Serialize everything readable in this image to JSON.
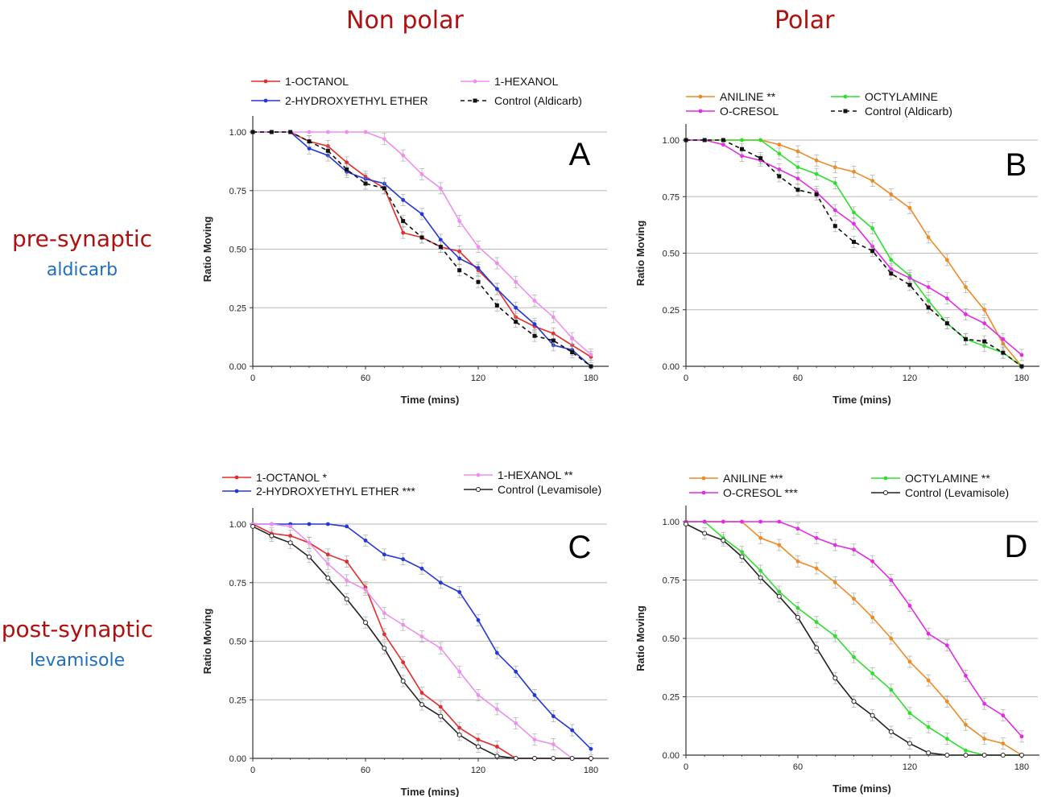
{
  "columns": {
    "left": "Non polar",
    "right": "Polar"
  },
  "rows": [
    {
      "title": "pre-synaptic",
      "subtitle": "aldicarb"
    },
    {
      "title": "post-synaptic",
      "subtitle": "levamisole"
    }
  ],
  "chart_data": [
    {
      "type": "line",
      "panel": "A",
      "xlabel": "Time (mins)",
      "ylabel": "Ratio Moving",
      "xlim": [
        0,
        180
      ],
      "ylim": [
        0,
        1
      ],
      "xticks": [
        "0",
        "60",
        "120",
        "180"
      ],
      "yticks": [
        "0.00",
        "0.25",
        "0.50",
        "0.75",
        "1.00"
      ],
      "grid": true,
      "legend": "top",
      "series": [
        {
          "name": "1-OCTANOL",
          "color": "#e52b2b",
          "dash": false,
          "marker": "dot",
          "x": [
            0,
            10,
            20,
            30,
            40,
            50,
            60,
            70,
            80,
            90,
            100,
            110,
            120,
            130,
            140,
            150,
            160,
            170,
            180
          ],
          "y": [
            1,
            1,
            1,
            0.96,
            0.94,
            0.87,
            0.81,
            0.76,
            0.57,
            0.55,
            0.51,
            0.49,
            0.41,
            0.33,
            0.21,
            0.17,
            0.14,
            0.09,
            0.04
          ]
        },
        {
          "name": "2-HYDROXYETHYL ETHER",
          "color": "#2437d9",
          "dash": false,
          "marker": "dot",
          "x": [
            0,
            10,
            20,
            30,
            40,
            50,
            60,
            70,
            80,
            90,
            100,
            110,
            120,
            130,
            140,
            150,
            160,
            170,
            180
          ],
          "y": [
            1,
            1,
            1,
            0.93,
            0.9,
            0.83,
            0.8,
            0.78,
            0.71,
            0.65,
            0.54,
            0.46,
            0.42,
            0.33,
            0.25,
            0.18,
            0.09,
            0.07,
            0.0
          ]
        },
        {
          "name": "1-HEXANOL",
          "color": "#ee8ff0",
          "dash": false,
          "marker": "dot",
          "x": [
            0,
            10,
            20,
            30,
            40,
            50,
            60,
            70,
            80,
            90,
            100,
            110,
            120,
            130,
            140,
            150,
            160,
            170,
            180
          ],
          "y": [
            1,
            1,
            1,
            1,
            1,
            1,
            1,
            0.97,
            0.9,
            0.82,
            0.76,
            0.62,
            0.51,
            0.44,
            0.36,
            0.28,
            0.21,
            0.12,
            0.05
          ]
        },
        {
          "name": "Control (Aldicarb)",
          "color": "#111111",
          "dash": true,
          "marker": "square",
          "x": [
            0,
            10,
            20,
            30,
            40,
            50,
            60,
            70,
            80,
            90,
            100,
            110,
            120,
            130,
            140,
            150,
            160,
            170,
            180
          ],
          "y": [
            1,
            1,
            1,
            0.96,
            0.92,
            0.84,
            0.78,
            0.76,
            0.62,
            0.55,
            0.51,
            0.41,
            0.36,
            0.26,
            0.19,
            0.13,
            0.11,
            0.06,
            0.0
          ]
        }
      ]
    },
    {
      "type": "line",
      "panel": "B",
      "xlabel": "Time (mins)",
      "ylabel": "Ratio Moving",
      "xlim": [
        0,
        180
      ],
      "ylim": [
        0,
        1
      ],
      "xticks": [
        "0",
        "60",
        "120",
        "180"
      ],
      "yticks": [
        "0.00",
        "0.25",
        "0.50",
        "0.75",
        "1.00"
      ],
      "grid": true,
      "legend": "top",
      "series": [
        {
          "name": "ANILINE **",
          "color": "#f08a24",
          "dash": false,
          "marker": "dot",
          "x": [
            0,
            10,
            20,
            30,
            40,
            50,
            60,
            70,
            80,
            90,
            100,
            110,
            120,
            130,
            140,
            150,
            160,
            170,
            180
          ],
          "y": [
            1,
            1,
            1,
            1,
            1,
            0.98,
            0.95,
            0.91,
            0.88,
            0.86,
            0.82,
            0.76,
            0.7,
            0.57,
            0.47,
            0.35,
            0.25,
            0.1,
            0.0
          ]
        },
        {
          "name": "OCTYLAMINE",
          "color": "#2ee02e",
          "dash": false,
          "marker": "dot",
          "x": [
            0,
            10,
            20,
            30,
            40,
            50,
            60,
            70,
            80,
            90,
            100,
            110,
            120,
            130,
            140,
            150,
            160,
            170,
            180
          ],
          "y": [
            1,
            1,
            1,
            1,
            1,
            0.94,
            0.88,
            0.85,
            0.81,
            0.68,
            0.61,
            0.47,
            0.4,
            0.29,
            0.19,
            0.12,
            0.09,
            0.06,
            0.0
          ]
        },
        {
          "name": "O-CRESOL",
          "color": "#e22ce6",
          "dash": false,
          "marker": "dot",
          "x": [
            0,
            10,
            20,
            30,
            40,
            50,
            60,
            70,
            80,
            90,
            100,
            110,
            120,
            130,
            140,
            150,
            160,
            170,
            180
          ],
          "y": [
            1,
            1,
            0.98,
            0.93,
            0.91,
            0.87,
            0.83,
            0.77,
            0.69,
            0.63,
            0.53,
            0.43,
            0.39,
            0.35,
            0.3,
            0.23,
            0.19,
            0.12,
            0.05
          ]
        },
        {
          "name": "Control (Aldicarb)",
          "color": "#111111",
          "dash": true,
          "marker": "square",
          "x": [
            0,
            10,
            20,
            30,
            40,
            50,
            60,
            70,
            80,
            90,
            100,
            110,
            120,
            130,
            140,
            150,
            160,
            170,
            180
          ],
          "y": [
            1,
            1,
            1,
            0.96,
            0.92,
            0.84,
            0.78,
            0.76,
            0.62,
            0.55,
            0.51,
            0.41,
            0.36,
            0.26,
            0.19,
            0.12,
            0.11,
            0.06,
            0.0
          ]
        }
      ]
    },
    {
      "type": "line",
      "panel": "C",
      "xlabel": "Time (mins)",
      "ylabel": "Ratio Moving",
      "xlim": [
        0,
        180
      ],
      "ylim": [
        0,
        1
      ],
      "xticks": [
        "0",
        "60",
        "120",
        "180"
      ],
      "yticks": [
        "0.00",
        "0.25",
        "0.50",
        "0.75",
        "1.00"
      ],
      "grid": true,
      "legend": "top",
      "series": [
        {
          "name": "1-OCTANOL  *",
          "color": "#e52b2b",
          "dash": false,
          "marker": "dot",
          "x": [
            0,
            10,
            20,
            30,
            40,
            50,
            60,
            70,
            80,
            90,
            100,
            110,
            120,
            130,
            140,
            150,
            160,
            170,
            180
          ],
          "y": [
            1,
            0.96,
            0.95,
            0.92,
            0.87,
            0.84,
            0.73,
            0.53,
            0.41,
            0.28,
            0.22,
            0.13,
            0.08,
            0.05,
            0.0,
            0.0,
            0.0,
            0.0,
            0.0
          ]
        },
        {
          "name": "2-HYDROXYETHYL ETHER  ***",
          "color": "#2437d9",
          "dash": false,
          "marker": "dot",
          "x": [
            0,
            10,
            20,
            30,
            40,
            50,
            60,
            70,
            80,
            90,
            100,
            110,
            120,
            130,
            140,
            150,
            160,
            170,
            180
          ],
          "y": [
            1,
            1,
            1,
            1,
            1,
            0.99,
            0.93,
            0.87,
            0.85,
            0.81,
            0.75,
            0.71,
            0.59,
            0.45,
            0.37,
            0.27,
            0.18,
            0.12,
            0.04
          ]
        },
        {
          "name": "1-HEXANOL  **",
          "color": "#ee8ff0",
          "dash": false,
          "marker": "dot",
          "x": [
            0,
            10,
            20,
            30,
            40,
            50,
            60,
            70,
            80,
            90,
            100,
            110,
            120,
            130,
            140,
            150,
            160,
            170,
            180
          ],
          "y": [
            1,
            1,
            0.99,
            0.92,
            0.83,
            0.76,
            0.72,
            0.62,
            0.57,
            0.52,
            0.47,
            0.37,
            0.27,
            0.21,
            0.15,
            0.08,
            0.06,
            0.0,
            0.0
          ]
        },
        {
          "name": "Control (Levamisole)",
          "color": "#222222",
          "dash": false,
          "marker": "open",
          "x": [
            0,
            10,
            20,
            30,
            40,
            50,
            60,
            70,
            80,
            90,
            100,
            110,
            120,
            130,
            140,
            150,
            160,
            170,
            180
          ],
          "y": [
            0.99,
            0.95,
            0.92,
            0.86,
            0.77,
            0.68,
            0.58,
            0.47,
            0.33,
            0.23,
            0.18,
            0.1,
            0.05,
            0.01,
            0.0,
            0.0,
            0.0,
            0.0,
            0.0
          ]
        }
      ]
    },
    {
      "type": "line",
      "panel": "D",
      "xlabel": "Time (mins)",
      "ylabel": "Ratio Moving",
      "xlim": [
        0,
        180
      ],
      "ylim": [
        0,
        1
      ],
      "xticks": [
        "0",
        "60",
        "120",
        "180"
      ],
      "yticks": [
        "0.00",
        "0.25",
        "0.50",
        "0.75",
        "1.00"
      ],
      "grid": true,
      "legend": "top",
      "series": [
        {
          "name": "ANILINE  ***",
          "color": "#f08a24",
          "dash": false,
          "marker": "dot",
          "x": [
            0,
            10,
            20,
            30,
            40,
            50,
            60,
            70,
            80,
            90,
            100,
            110,
            120,
            130,
            140,
            150,
            160,
            170,
            180
          ],
          "y": [
            1,
            1,
            1,
            1,
            0.93,
            0.9,
            0.83,
            0.8,
            0.74,
            0.67,
            0.59,
            0.5,
            0.4,
            0.32,
            0.23,
            0.13,
            0.07,
            0.05,
            0.0
          ]
        },
        {
          "name": "OCTYLAMINE  **",
          "color": "#2ee02e",
          "dash": false,
          "marker": "dot",
          "x": [
            0,
            10,
            20,
            30,
            40,
            50,
            60,
            70,
            80,
            90,
            100,
            110,
            120,
            130,
            140,
            150,
            160,
            170,
            180
          ],
          "y": [
            1,
            1,
            0.93,
            0.87,
            0.79,
            0.7,
            0.63,
            0.57,
            0.51,
            0.42,
            0.35,
            0.28,
            0.18,
            0.12,
            0.07,
            0.02,
            0.0,
            0.0,
            0.0
          ]
        },
        {
          "name": "O-CRESOL  ***",
          "color": "#e22ce6",
          "dash": false,
          "marker": "dot",
          "x": [
            0,
            10,
            20,
            30,
            40,
            50,
            60,
            70,
            80,
            90,
            100,
            110,
            120,
            130,
            140,
            150,
            160,
            170,
            180
          ],
          "y": [
            1,
            1,
            1,
            1,
            1,
            1,
            0.97,
            0.93,
            0.9,
            0.88,
            0.83,
            0.75,
            0.64,
            0.52,
            0.47,
            0.34,
            0.22,
            0.17,
            0.08
          ]
        },
        {
          "name": "Control (Levamisole)",
          "color": "#222222",
          "dash": false,
          "marker": "open",
          "x": [
            0,
            10,
            20,
            30,
            40,
            50,
            60,
            70,
            80,
            90,
            100,
            110,
            120,
            130,
            140,
            150,
            160,
            170,
            180
          ],
          "y": [
            0.99,
            0.95,
            0.92,
            0.85,
            0.76,
            0.68,
            0.59,
            0.46,
            0.33,
            0.23,
            0.17,
            0.1,
            0.05,
            0.01,
            0.0,
            0.0,
            0.0,
            0.0,
            0.0
          ]
        }
      ]
    }
  ]
}
